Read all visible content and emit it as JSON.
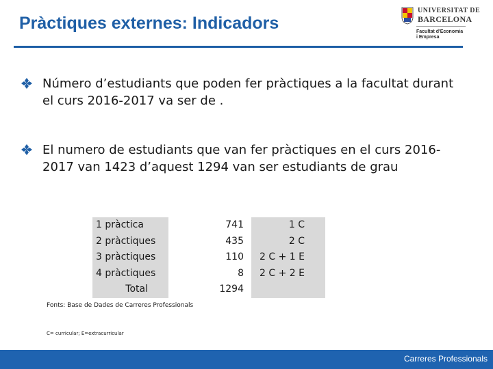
{
  "header": {
    "title": "Pràctiques externes: Indicadors",
    "accent_color": "#1f5fa6",
    "logo": {
      "university_line1": "UNIVERSITAT DE",
      "university_line2": "BARCELONA",
      "faculty_line1": "Facultat d'Economia",
      "faculty_line2": "i Empresa"
    }
  },
  "bullets": [
    {
      "icon": "diamond-bullet-icon",
      "text": "Número d’estudiants que poden fer pràctiques a la facultat durant el curs 2016-2017 va ser de ."
    },
    {
      "icon": "diamond-bullet-icon",
      "text": "El numero de estudiants que van fer pràctiques en el curs 2016-2017 van 1423 d’aquest 1294 van ser estudiants de grau"
    }
  ],
  "table": {
    "rows": [
      {
        "label": "1 pràctica",
        "count": "741",
        "type": "1 C"
      },
      {
        "label": "2 pràctiques",
        "count": "435",
        "type": "2 C"
      },
      {
        "label": "3 pràctiques",
        "count": "110",
        "type": "2 C + 1 E"
      },
      {
        "label": "4 pràctiques",
        "count": "8",
        "type": "2 C + 2 E"
      },
      {
        "label": "Total",
        "count": "1294",
        "type": ""
      }
    ]
  },
  "footnotes": {
    "source": "Fonts: Base de Dades de Carreres Professionals",
    "legend": "C= curricular; E=extracurricular"
  },
  "footer": {
    "label": "Carreres Professionals",
    "color": "#1f63b0"
  }
}
